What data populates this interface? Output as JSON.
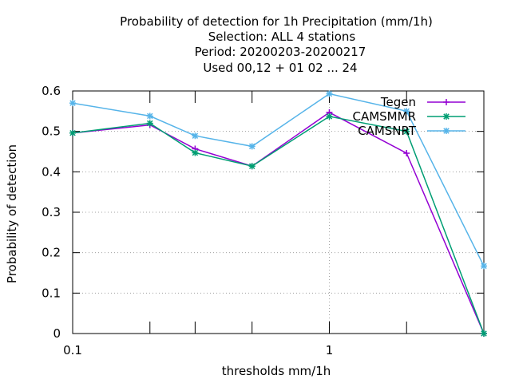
{
  "chart_data": {
    "type": "line",
    "title_lines": [
      "Probability of detection  for 1h Precipitation (mm/1h)",
      "Selection: ALL      4 stations",
      "Period: 20200203-20200217",
      "Used  00,12  + 01 02 ... 24"
    ],
    "xlabel": "thresholds mm/1h",
    "ylabel": "Probability of detection",
    "x_scale": "log",
    "xlim": [
      0.1,
      4
    ],
    "ylim": [
      0,
      0.6
    ],
    "x_tick_labels": [
      {
        "value": 0.1,
        "label": "0.1"
      },
      {
        "value": 1,
        "label": "1"
      }
    ],
    "x_minor_ticks": [
      0.2,
      0.3,
      0.5,
      2
    ],
    "y_ticks": [
      {
        "value": 0,
        "label": "0"
      },
      {
        "value": 0.1,
        "label": "0.1"
      },
      {
        "value": 0.2,
        "label": "0.2"
      },
      {
        "value": 0.3,
        "label": "0.3"
      },
      {
        "value": 0.4,
        "label": "0.4"
      },
      {
        "value": 0.5,
        "label": "0.5"
      },
      {
        "value": 0.6,
        "label": "0.6"
      }
    ],
    "grid": true,
    "legend_position": "top-right",
    "x": [
      0.1,
      0.2,
      0.3,
      0.5,
      1,
      2,
      4
    ],
    "series": [
      {
        "name": "Tegen",
        "color": "#9400d3",
        "marker": "plus",
        "values": [
          0.496,
          0.516,
          0.457,
          0.414,
          0.547,
          0.446,
          0.0
        ]
      },
      {
        "name": "CAMSMMR",
        "color": "#009e73",
        "marker": "cross",
        "values": [
          0.496,
          0.52,
          0.447,
          0.414,
          0.537,
          0.5,
          0.0
        ]
      },
      {
        "name": "CAMSNRT",
        "color": "#56b4e9",
        "marker": "star",
        "values": [
          0.57,
          0.538,
          0.489,
          0.463,
          0.593,
          0.55,
          0.167
        ]
      }
    ]
  }
}
